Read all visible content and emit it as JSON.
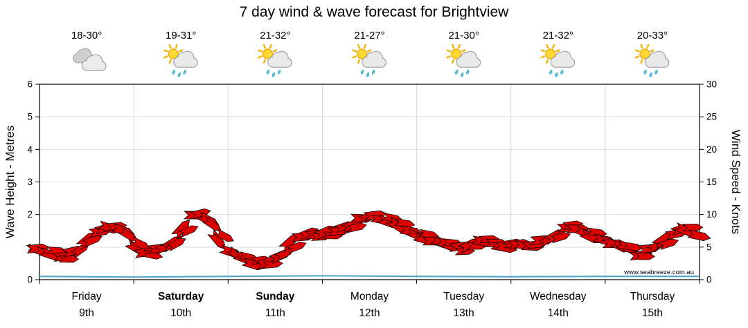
{
  "title": "7 day wind & wave forecast for Brightview",
  "watermark": "www.seabreeze.com.au",
  "axes": {
    "left_label": "Wave Height - Metres",
    "right_label": "Wind Speed - Knots",
    "left_ticks": [
      0,
      1,
      2,
      3,
      4,
      5,
      6
    ],
    "right_ticks": [
      0,
      5,
      10,
      15,
      20,
      25,
      30
    ]
  },
  "colors": {
    "temp_text": "#8e1212",
    "grid": "#dedede",
    "day_grid": "#d4d4d4",
    "date_text": "#999999",
    "watermark_text": "#c9c9c9"
  },
  "days": [
    {
      "name": "Friday",
      "date": "9th",
      "temp": "18-30°",
      "icon": "clouds-icon",
      "bold": false
    },
    {
      "name": "Saturday",
      "date": "10th",
      "temp": "19-31°",
      "icon": "sun-showers-icon",
      "bold": true
    },
    {
      "name": "Sunday",
      "date": "11th",
      "temp": "21-32°",
      "icon": "sun-showers-icon",
      "bold": true
    },
    {
      "name": "Monday",
      "date": "12th",
      "temp": "21-27°",
      "icon": "sun-showers-icon",
      "bold": false
    },
    {
      "name": "Tuesday",
      "date": "13th",
      "temp": "21-30°",
      "icon": "sun-showers-icon",
      "bold": false
    },
    {
      "name": "Wednesday",
      "date": "14th",
      "temp": "21-32°",
      "icon": "sun-showers-icon",
      "bold": false
    },
    {
      "name": "Thursday",
      "date": "15th",
      "temp": "20-33°",
      "icon": "sun-showers-icon",
      "bold": false
    }
  ],
  "chart_data": {
    "type": "line",
    "title": "7 day wind & wave forecast for Brightview",
    "categories": [
      "Friday",
      "Saturday",
      "Sunday",
      "Monday",
      "Tuesday",
      "Wednesday",
      "Thursday"
    ],
    "points_per_day": 8,
    "left_axis": {
      "label": "Wave Height - Metres",
      "range": [
        0,
        6
      ]
    },
    "right_axis": {
      "label": "Wind Speed - Knots",
      "range": [
        0,
        30
      ]
    },
    "series_color": "#dd0000",
    "wave_color": "#4aa3c7",
    "wind_speed_knots": [
      4.5,
      4.0,
      3.6,
      4.2,
      6.5,
      7.5,
      7.8,
      7.2,
      5.0,
      4.2,
      4.6,
      6.0,
      8.0,
      9.8,
      8.8,
      6.2,
      4.2,
      3.0,
      2.6,
      2.8,
      3.6,
      5.5,
      6.8,
      7.0,
      7.2,
      7.8,
      8.5,
      9.3,
      9.6,
      9.0,
      8.2,
      7.2,
      6.5,
      6.0,
      5.2,
      4.8,
      5.6,
      5.8,
      5.4,
      5.2,
      5.6,
      5.0,
      5.8,
      7.0,
      8.0,
      7.6,
      6.8,
      6.2,
      5.4,
      4.6,
      4.0,
      4.8,
      6.0,
      7.4,
      7.6,
      6.6
    ],
    "wave_height_metres": [
      0.1,
      0.08,
      0.1,
      0.12,
      0.1,
      0.09,
      0.1,
      0.1
    ]
  }
}
